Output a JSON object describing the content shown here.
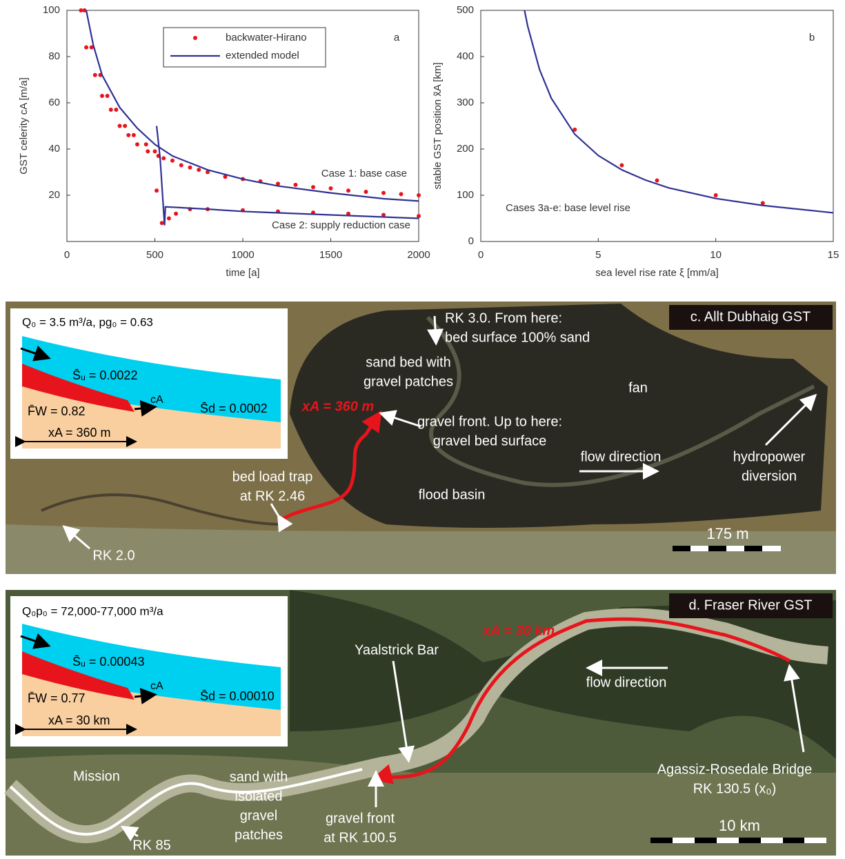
{
  "chart_data": [
    {
      "type": "line",
      "panel": "a",
      "xlabel": "time [a]",
      "ylabel": "GST celerity cA [m/a]",
      "xlim": [
        0,
        2000
      ],
      "xticks": [
        0,
        500,
        1000,
        1500,
        2000
      ],
      "ylim": [
        0,
        100
      ],
      "yticks": [
        20,
        40,
        60,
        80,
        100
      ],
      "annotations": [
        "Case 1: base case",
        "Case 2: supply reduction case"
      ],
      "series": [
        {
          "name": "backwater-Hirano",
          "type": "scatter",
          "color": "#e8141c",
          "x": [
            80,
            100,
            110,
            140,
            160,
            190,
            200,
            230,
            250,
            280,
            300,
            330,
            350,
            380,
            400,
            450,
            460,
            500,
            520,
            550,
            600,
            650,
            700,
            750,
            800,
            900,
            1000,
            1100,
            1200,
            1300,
            1400,
            1500,
            1600,
            1700,
            1800,
            1900,
            2000,
            510,
            540,
            580,
            620,
            700,
            800,
            1000,
            1200,
            1400,
            1600,
            1800,
            2000
          ],
          "values": [
            100,
            100,
            84,
            84,
            72,
            72,
            63,
            63,
            57,
            57,
            50,
            50,
            46,
            46,
            42,
            42,
            39,
            39,
            37,
            36,
            35,
            33,
            32,
            31,
            30,
            28,
            27,
            26,
            25,
            24.5,
            23.5,
            23,
            22,
            21.5,
            21,
            20.5,
            20,
            22,
            8,
            10,
            12,
            14,
            14,
            13.5,
            13,
            12.5,
            12,
            11.5,
            11
          ]
        },
        {
          "name": "extended model",
          "type": "line",
          "color": "#2e3192",
          "x": [
            110,
            150,
            200,
            300,
            400,
            500,
            600,
            800,
            1000,
            1200,
            1500,
            1800,
            2000,
            null,
            510,
            530,
            555,
            560,
            800,
            1000,
            1500,
            2000
          ],
          "values": [
            100,
            85,
            72,
            58,
            49,
            42,
            37,
            31,
            27,
            24,
            21,
            18.5,
            17.5,
            null,
            50,
            36,
            7,
            15,
            14,
            13,
            11.5,
            10
          ]
        }
      ]
    },
    {
      "type": "line",
      "panel": "b",
      "xlabel": "sea level rise rate ξ [mm/a]",
      "ylabel": "stable GST position x̃A [km]",
      "xlim": [
        0,
        15
      ],
      "xticks": [
        0,
        5,
        10,
        15
      ],
      "ylim": [
        0,
        500
      ],
      "yticks": [
        0,
        100,
        200,
        300,
        400,
        500
      ],
      "annotations": [
        "Cases 3a-e: base level rise"
      ],
      "series": [
        {
          "type": "scatter",
          "color": "#e8141c",
          "x": [
            4,
            6,
            7.5,
            10,
            12
          ],
          "values": [
            242,
            165,
            132,
            100,
            83
          ]
        },
        {
          "type": "line",
          "color": "#2e3192",
          "x": [
            1.86,
            2,
            2.5,
            3,
            4,
            5,
            6,
            7,
            8,
            10,
            12,
            15
          ],
          "values": [
            500,
            465,
            372,
            310,
            232,
            186,
            155,
            133,
            116,
            93,
            78,
            62
          ]
        }
      ]
    }
  ],
  "panels": [
    {
      "label": "c. Allt Dubhaig GST",
      "inset": [
        "Q₀ = 3.5 m³/a, pg₀ = 0.63",
        "S̄ᵤ = 0.0022",
        "F̄W = 0.82",
        "cA",
        "S̄d = 0.0002",
        "xA = 360 m"
      ],
      "annotations": [
        [
          "RK 3.0. From here:",
          "bed surface 100% sand"
        ],
        [
          "sand bed with",
          "gravel patches"
        ],
        [
          "xA = 360 m"
        ],
        [
          "gravel front. Up to here:",
          "gravel bed surface"
        ],
        [
          "fan"
        ],
        [
          "flow direction"
        ],
        [
          "hydropower",
          "diversion"
        ],
        [
          "bed load trap",
          "at RK 2.46"
        ],
        [
          "flood basin"
        ],
        [
          "RK 2.0"
        ]
      ],
      "scale": "175 m"
    },
    {
      "label": "d. Fraser River GST",
      "inset": [
        "Q₀p₀ = 72,000-77,000 m³/a",
        "S̄ᵤ = 0.00043",
        "F̄W = 0.77",
        "cA",
        "S̄d = 0.00010",
        "xA = 30 km"
      ],
      "annotations": [
        [
          "xA = 30 km"
        ],
        [
          "Yaalstrick Bar"
        ],
        [
          "flow direction"
        ],
        [
          "Mission"
        ],
        [
          "sand with",
          "isolated",
          "gravel",
          "patches"
        ],
        [
          "gravel front",
          "at RK 100.5"
        ],
        [
          "Agassiz-Rosedale Bridge",
          "RK 130.5 (x₀)"
        ],
        [
          "RK 85"
        ]
      ],
      "scale": "10 km"
    }
  ]
}
